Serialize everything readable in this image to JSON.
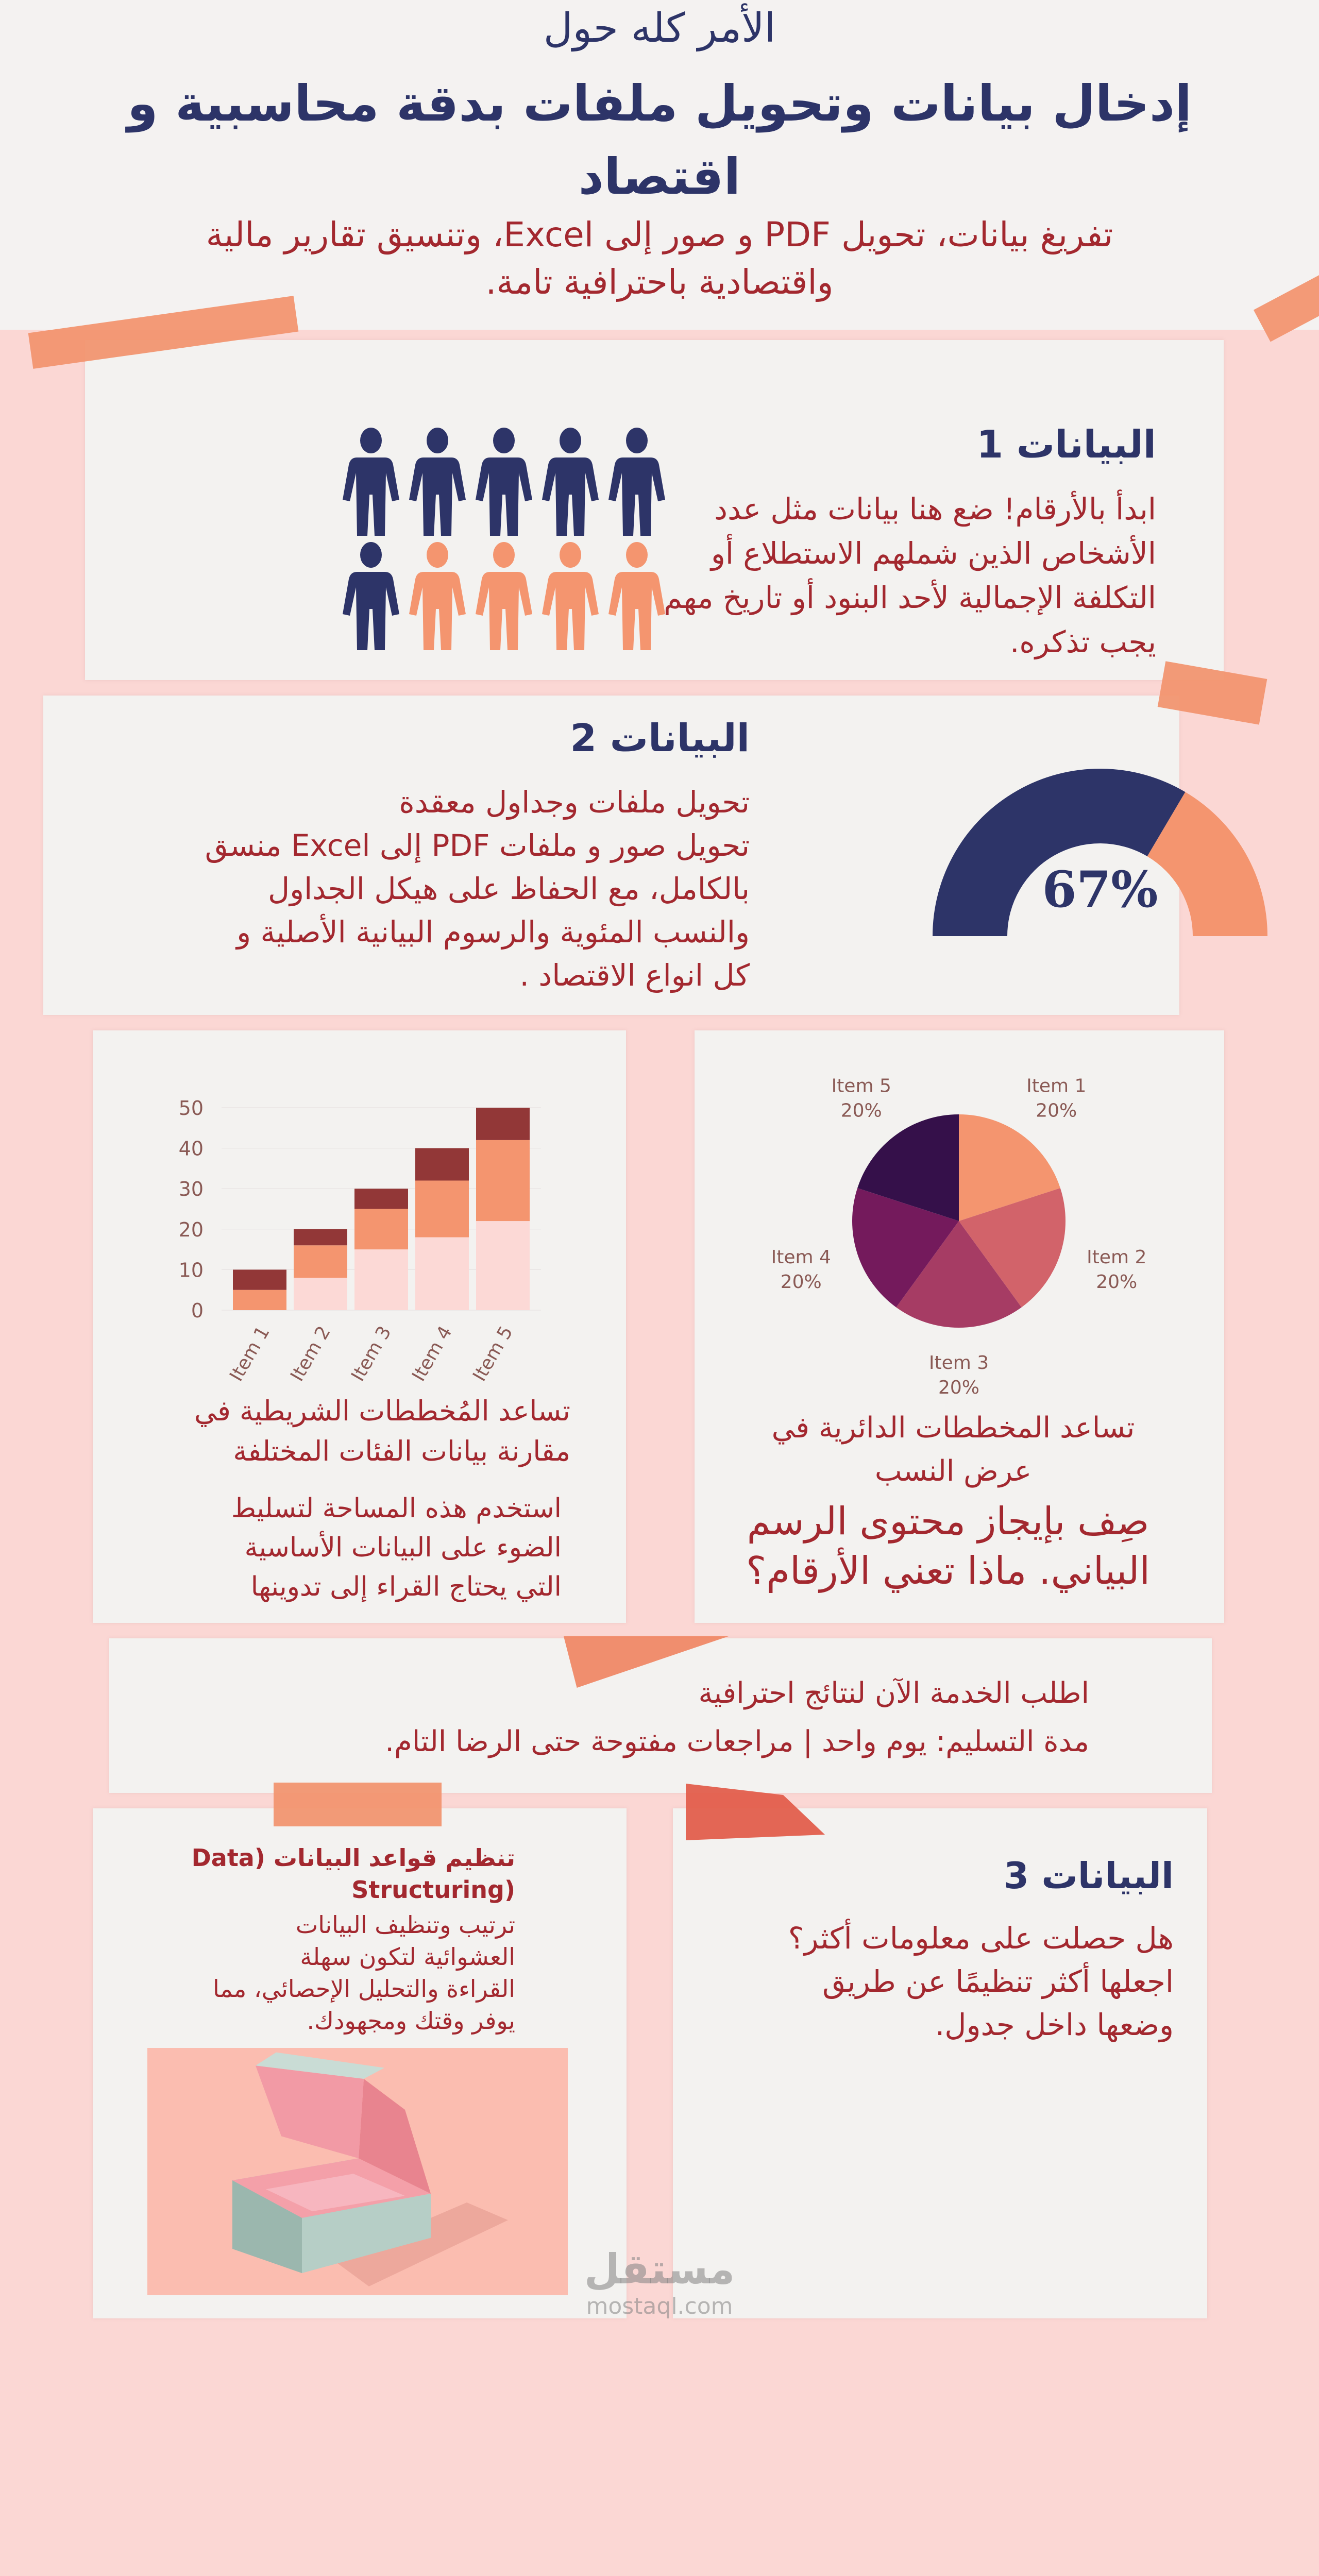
{
  "header": {
    "kicker": "الأمر كله حول",
    "title_lines": [
      "إدخال بيانات وتحويل ملفات بدقة محاسبية و",
      "اقتصاد"
    ],
    "subtitle_lines": [
      "تفريغ بيانات، تحويل PDF و صور إلى Excel، وتنسيق تقارير مالية",
      "واقتصادية باحترافية تامة."
    ]
  },
  "section1": {
    "heading": "البيانات 1",
    "body_lines": [
      "ابدأ بالأرقام! ضع هنا بيانات مثل عدد",
      "الأشخاص الذين شملهم الاستطلاع أو",
      "التكلفة الإجمالية لأحد البنود أو تاريخ مهم",
      "يجب تذكره."
    ],
    "people": {
      "total": 10,
      "highlighted": 6,
      "colors": {
        "primary": "#2d3468",
        "secondary": "#f4956f"
      }
    }
  },
  "section2": {
    "heading": "البيانات 2",
    "body_lines": [
      "تحويل ملفات وجداول معقدة",
      "تحويل صور و ملفات PDF إلى Excel منسق",
      "بالكامل، مع الحفاظ على هيكل الجداول",
      "والنسب المئوية والرسوم البيانية الأصلية و",
      "كل انواع الاقتصاد ."
    ],
    "gauge": {
      "value": 67,
      "label": "67%",
      "fill_color": "#2d3468",
      "rest_color": "#f4956f"
    }
  },
  "chart_data": [
    {
      "type": "bar",
      "stacked": true,
      "categories": [
        "Item 1",
        "Item 2",
        "Item 3",
        "Item 4",
        "Item 5"
      ],
      "series": [
        {
          "values": [
            0,
            8,
            15,
            18,
            22
          ],
          "color": "#fcd9d6"
        },
        {
          "values": [
            5,
            8,
            10,
            14,
            20
          ],
          "color": "#f4956f"
        },
        {
          "values": [
            5,
            4,
            5,
            8,
            8
          ],
          "color": "#923737"
        }
      ],
      "yticks": [
        0,
        10,
        20,
        30,
        40,
        50
      ],
      "ylim": [
        0,
        50
      ],
      "grid": true
    },
    {
      "type": "pie",
      "slices": [
        {
          "label": "Item 1",
          "value": 20,
          "pct": "20%",
          "color": "#f4956f"
        },
        {
          "label": "Item 2",
          "value": 20,
          "pct": "20%",
          "color": "#d2636a"
        },
        {
          "label": "Item 3",
          "value": 20,
          "pct": "20%",
          "color": "#a63c64"
        },
        {
          "label": "Item 4",
          "value": 20,
          "pct": "20%",
          "color": "#741a5c"
        },
        {
          "label": "Item 5",
          "value": 20,
          "pct": "20%",
          "color": "#35104a"
        }
      ]
    }
  ],
  "bar_card": {
    "heading_lines": [
      "تساعد المُخططات الشريطية في",
      "مقارنة بيانات الفئات المختلفة"
    ],
    "body_lines": [
      "استخدم هذه المساحة لتسليط",
      "الضوء على البيانات الأساسية",
      "التي يحتاج القراء إلى تدوينها"
    ]
  },
  "pie_card": {
    "heading_lines": [
      "تساعد المخططات الدائرية في",
      "عرض النسب"
    ],
    "body_lines": [
      "صِف بإيجاز محتوى الرسم",
      "البياني. ماذا تعني الأرقام؟"
    ]
  },
  "cta": {
    "lines": [
      "اطلب الخدمة الآن لنتائج احترافية",
      "مدة التسليم: يوم واحد | مراجعات مفتوحة حتى الرضا التام."
    ]
  },
  "structuring": {
    "title_lines": [
      "تنظيم قواعد البيانات (Data",
      "(Structuring"
    ],
    "body_lines": [
      "ترتيب وتنظيف البيانات",
      "العشوائية لتكون سهلة",
      "القراءة والتحليل الإحصائي، مما",
      "يوفر وقتك ومجهودك."
    ]
  },
  "section3": {
    "heading": "البيانات 3",
    "body_lines": [
      "هل حصلت على معلومات أكثر؟",
      "اجعلها أكثر تنظيمًا عن طريق",
      "وضعها داخل جدول."
    ]
  },
  "watermark": {
    "logo": "مستقل",
    "domain": "mostaql.com"
  }
}
